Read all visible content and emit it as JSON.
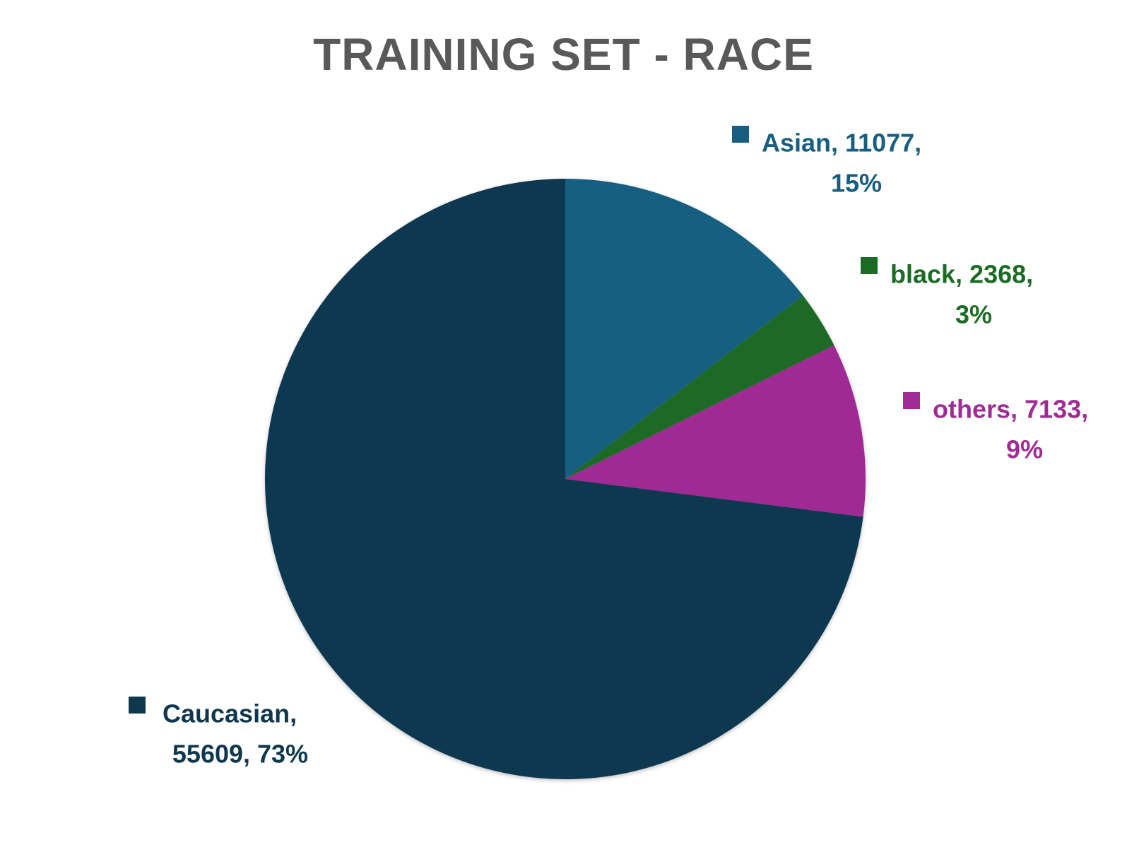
{
  "chart_data": {
    "type": "pie",
    "title": "TRAINING SET - RACE",
    "slices": [
      {
        "name": "Asian",
        "value": 11077,
        "percent": "15%",
        "color": "#175e80",
        "label_line1": "Asian, 11077,",
        "label_line2": "15%"
      },
      {
        "name": "black",
        "value": 2368,
        "percent": "3%",
        "color": "#1c6b25",
        "label_line1": "black, 2368,",
        "label_line2": "3%"
      },
      {
        "name": "others",
        "value": 7133,
        "percent": "9%",
        "color": "#a02b93",
        "label_line1": "others, 7133,",
        "label_line2": "9%"
      },
      {
        "name": "Caucasian",
        "value": 55609,
        "percent": "73%",
        "color": "#0f384f",
        "label_line1": "Caucasian,",
        "label_line2": "55609, 73%"
      }
    ]
  }
}
